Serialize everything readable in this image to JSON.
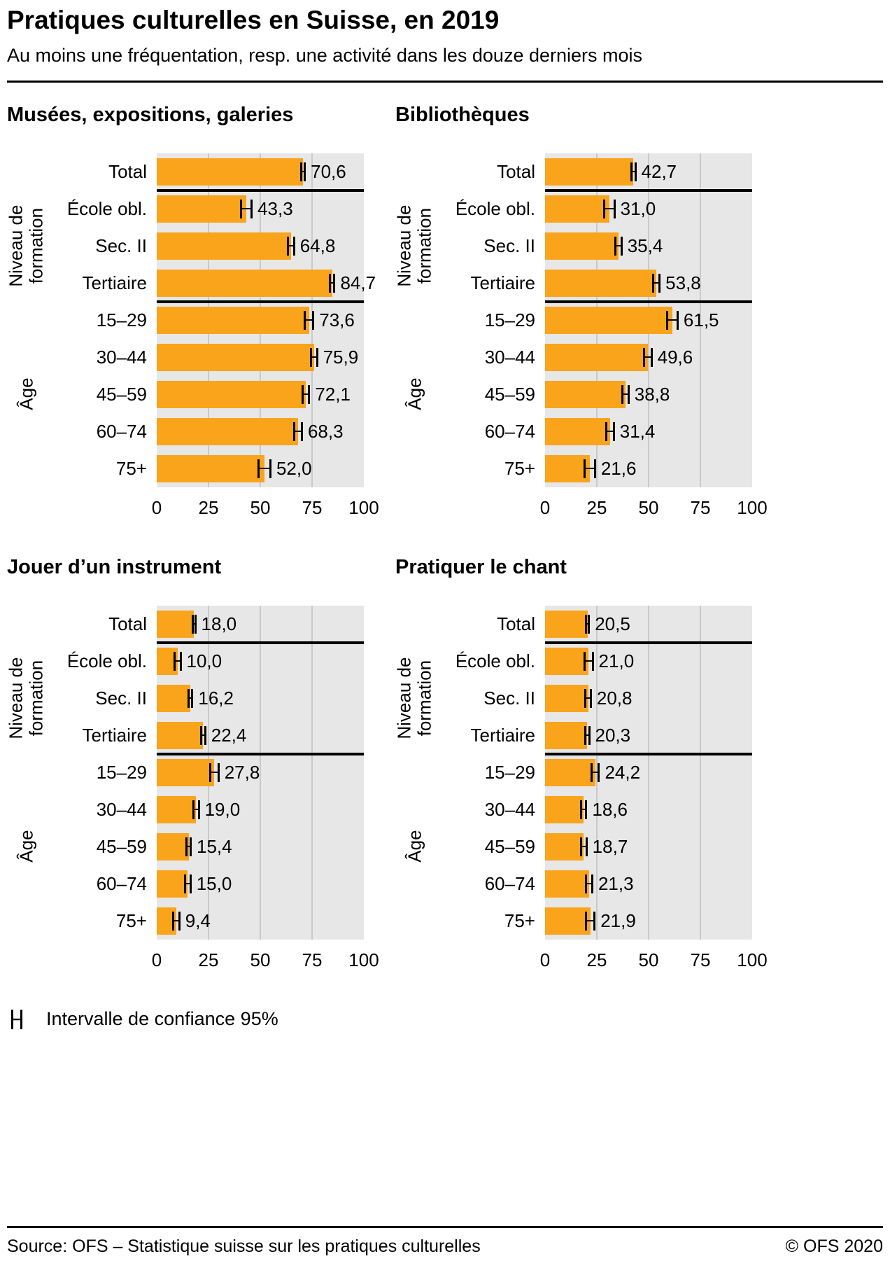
{
  "header": {
    "title": "Pratiques culturelles en Suisse, en 2019",
    "subtitle": "Au moins une fréquentation, resp. une activité dans les douze derniers mois"
  },
  "legend": {
    "label": "Intervalle de confiance 95%",
    "icon": "confidence-interval-icon"
  },
  "footer": {
    "source": "Source: OFS – Statistique suisse sur les pratiques culturelles",
    "copyright": "© OFS 2020"
  },
  "colors": {
    "bar": "#F9A41B",
    "plot_background": "#E7E7E7",
    "gridline": "#C9C9C9",
    "separator": "#000000",
    "ci": "#000000"
  },
  "chart_data": [
    {
      "type": "bar",
      "orientation": "horizontal",
      "title": "Musées, expositions, galeries",
      "categories": [
        "Total",
        "École obl.",
        "Sec. II",
        "Tertiaire",
        "15–29",
        "30–44",
        "45–59",
        "60–74",
        "75+"
      ],
      "values": [
        70.6,
        43.3,
        64.8,
        84.7,
        73.6,
        75.9,
        72.1,
        68.3,
        52.0
      ],
      "value_labels": [
        "70,6",
        "43,3",
        "64,8",
        "84,7",
        "73,6",
        "75,9",
        "72,1",
        "68,3",
        "52,0"
      ],
      "ci_halfwidth": [
        1.4,
        3.0,
        2.0,
        1.6,
        2.5,
        2.0,
        2.0,
        2.3,
        3.4
      ],
      "groups": [
        {
          "label": "Niveau de\nformation",
          "start_row": 1,
          "end_row": 3
        },
        {
          "label": "Âge",
          "start_row": 4,
          "end_row": 8
        }
      ],
      "separators_after_rows": [
        0,
        3
      ],
      "xlim": [
        0,
        100
      ],
      "x_ticks": [
        0,
        25,
        50,
        75,
        100
      ]
    },
    {
      "type": "bar",
      "orientation": "horizontal",
      "title": "Bibliothèques",
      "categories": [
        "Total",
        "École obl.",
        "Sec. II",
        "Tertiaire",
        "15–29",
        "30–44",
        "45–59",
        "60–74",
        "75+"
      ],
      "values": [
        42.7,
        31.0,
        35.4,
        53.8,
        61.5,
        49.6,
        38.8,
        31.4,
        21.6
      ],
      "value_labels": [
        "42,7",
        "31,0",
        "35,4",
        "53,8",
        "61,5",
        "49,6",
        "38,8",
        "31,4",
        "21,6"
      ],
      "ci_halfwidth": [
        1.4,
        3.0,
        2.0,
        2.0,
        3.0,
        2.3,
        2.0,
        2.3,
        3.0
      ],
      "groups": [
        {
          "label": "Niveau de\nformation",
          "start_row": 1,
          "end_row": 3
        },
        {
          "label": "Âge",
          "start_row": 4,
          "end_row": 8
        }
      ],
      "separators_after_rows": [
        0,
        3
      ],
      "xlim": [
        0,
        100
      ],
      "x_ticks": [
        0,
        25,
        50,
        75,
        100
      ]
    },
    {
      "type": "bar",
      "orientation": "horizontal",
      "title": "Jouer d’un instrument",
      "categories": [
        "Total",
        "École obl.",
        "Sec. II",
        "Tertiaire",
        "15–29",
        "30–44",
        "45–59",
        "60–74",
        "75+"
      ],
      "values": [
        18.0,
        10.0,
        16.2,
        22.4,
        27.8,
        19.0,
        15.4,
        15.0,
        9.4
      ],
      "value_labels": [
        "18,0",
        "10,0",
        "16,2",
        "22,4",
        "27,8",
        "19,0",
        "15,4",
        "15,0",
        "9,4"
      ],
      "ci_halfwidth": [
        1.1,
        2.0,
        1.5,
        1.5,
        2.5,
        1.8,
        1.5,
        1.8,
        2.0
      ],
      "groups": [
        {
          "label": "Niveau de\nformation",
          "start_row": 1,
          "end_row": 3
        },
        {
          "label": "Âge",
          "start_row": 4,
          "end_row": 8
        }
      ],
      "separators_after_rows": [
        0,
        3
      ],
      "xlim": [
        0,
        100
      ],
      "x_ticks": [
        0,
        25,
        50,
        75,
        100
      ]
    },
    {
      "type": "bar",
      "orientation": "horizontal",
      "title": "Pratiquer le chant",
      "categories": [
        "Total",
        "École obl.",
        "Sec. II",
        "Tertiaire",
        "15–29",
        "30–44",
        "45–59",
        "60–74",
        "75+"
      ],
      "values": [
        20.5,
        21.0,
        20.8,
        20.3,
        24.2,
        18.6,
        18.7,
        21.3,
        21.9
      ],
      "value_labels": [
        "20,5",
        "21,0",
        "20,8",
        "20,3",
        "24,2",
        "18,6",
        "18,7",
        "21,3",
        "21,9"
      ],
      "ci_halfwidth": [
        1.2,
        2.5,
        1.8,
        1.5,
        2.3,
        1.8,
        1.8,
        2.0,
        2.5
      ],
      "groups": [
        {
          "label": "Niveau de\nformation",
          "start_row": 1,
          "end_row": 3
        },
        {
          "label": "Âge",
          "start_row": 4,
          "end_row": 8
        }
      ],
      "separators_after_rows": [
        0,
        3
      ],
      "xlim": [
        0,
        100
      ],
      "x_ticks": [
        0,
        25,
        50,
        75,
        100
      ]
    }
  ]
}
